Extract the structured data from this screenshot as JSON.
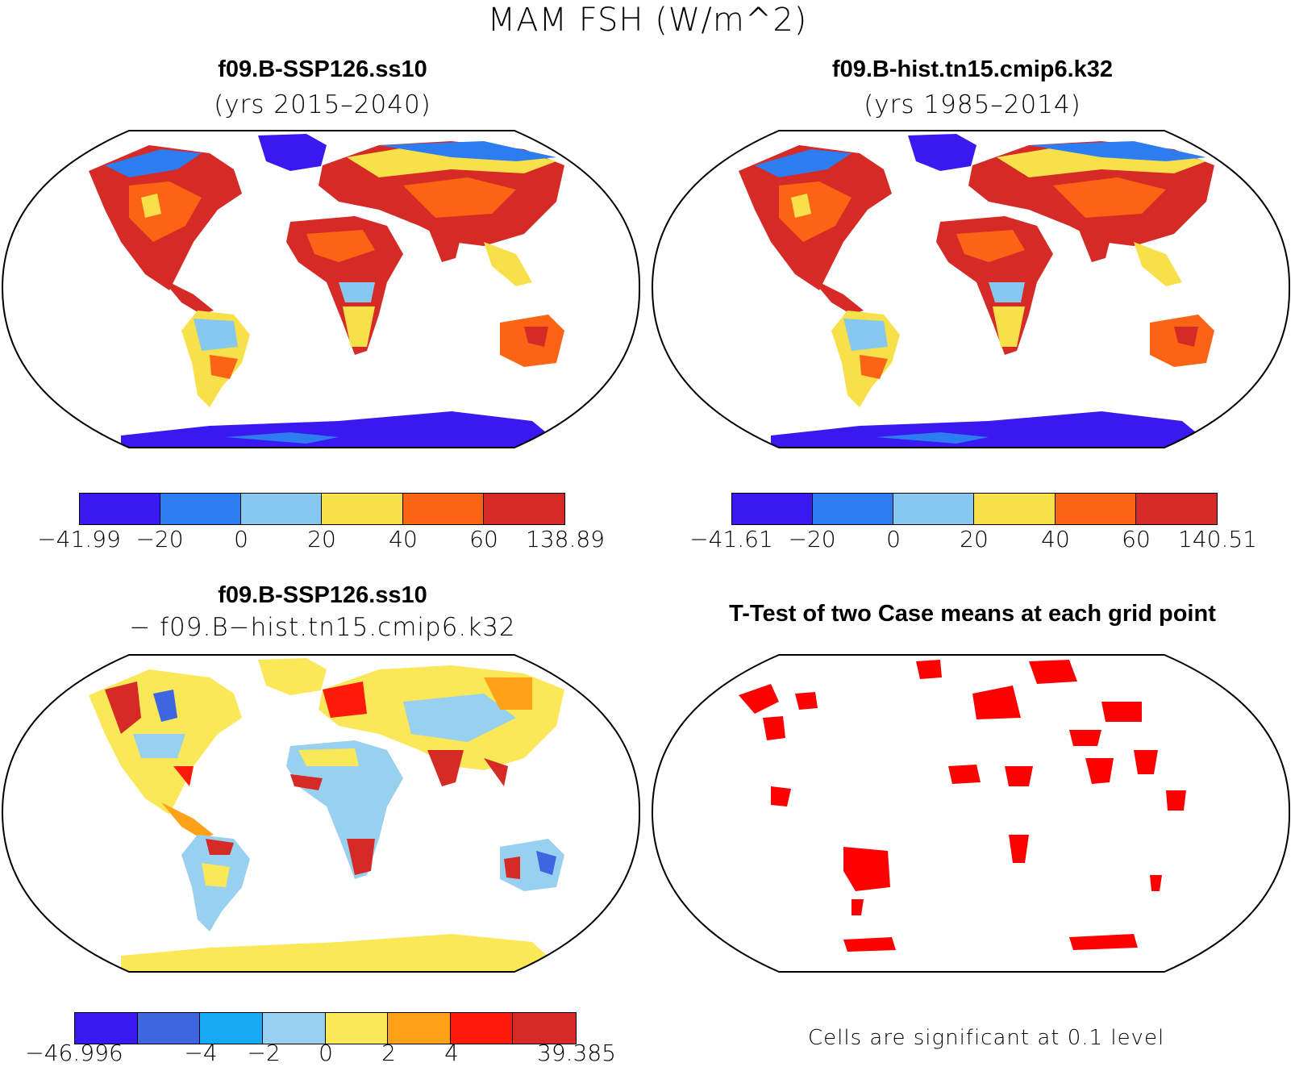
{
  "title": "MAM FSH (W/m^2)",
  "panels": [
    {
      "title": "f09.B-SSP126.ss10",
      "subtitle": "(yrs 2015–2040)",
      "colorbar": {
        "colors": [
          "#3a18f0",
          "#2e7df0",
          "#86c8f0",
          "#f8e04a",
          "#fa6414",
          "#d52a25"
        ],
        "ticks": [
          "−41.99",
          "−20",
          "0",
          "20",
          "40",
          "60",
          "138.89"
        ]
      }
    },
    {
      "title": "f09.B-hist.tn15.cmip6.k32",
      "subtitle": "(yrs 1985–2014)",
      "colorbar": {
        "colors": [
          "#3a18f0",
          "#2e7df0",
          "#86c8f0",
          "#f8e04a",
          "#fa6414",
          "#d52a25"
        ],
        "ticks": [
          "−41.61",
          "−20",
          "0",
          "20",
          "40",
          "60",
          "140.51"
        ]
      }
    },
    {
      "title": "f09.B-SSP126.ss10",
      "subtitle": "− f09.B−hist.tn15.cmip6.k32",
      "colorbar": {
        "colors": [
          "#3a18f0",
          "#3d66e0",
          "#16aaf4",
          "#98d0f0",
          "#fae858",
          "#ffa21a",
          "#ff1a0a",
          "#d52a25"
        ],
        "ticks": [
          "−46.996",
          "−4",
          "−2",
          "0",
          "2",
          "4",
          "39.385"
        ]
      }
    },
    {
      "title": "T-Test of two Case means at each grid point",
      "note": "Cells are significant at 0.1 level",
      "signif_color": "#ff0000"
    }
  ],
  "legend_colors": {
    "land_outline": "#000000",
    "ocean": "#ffffff"
  }
}
